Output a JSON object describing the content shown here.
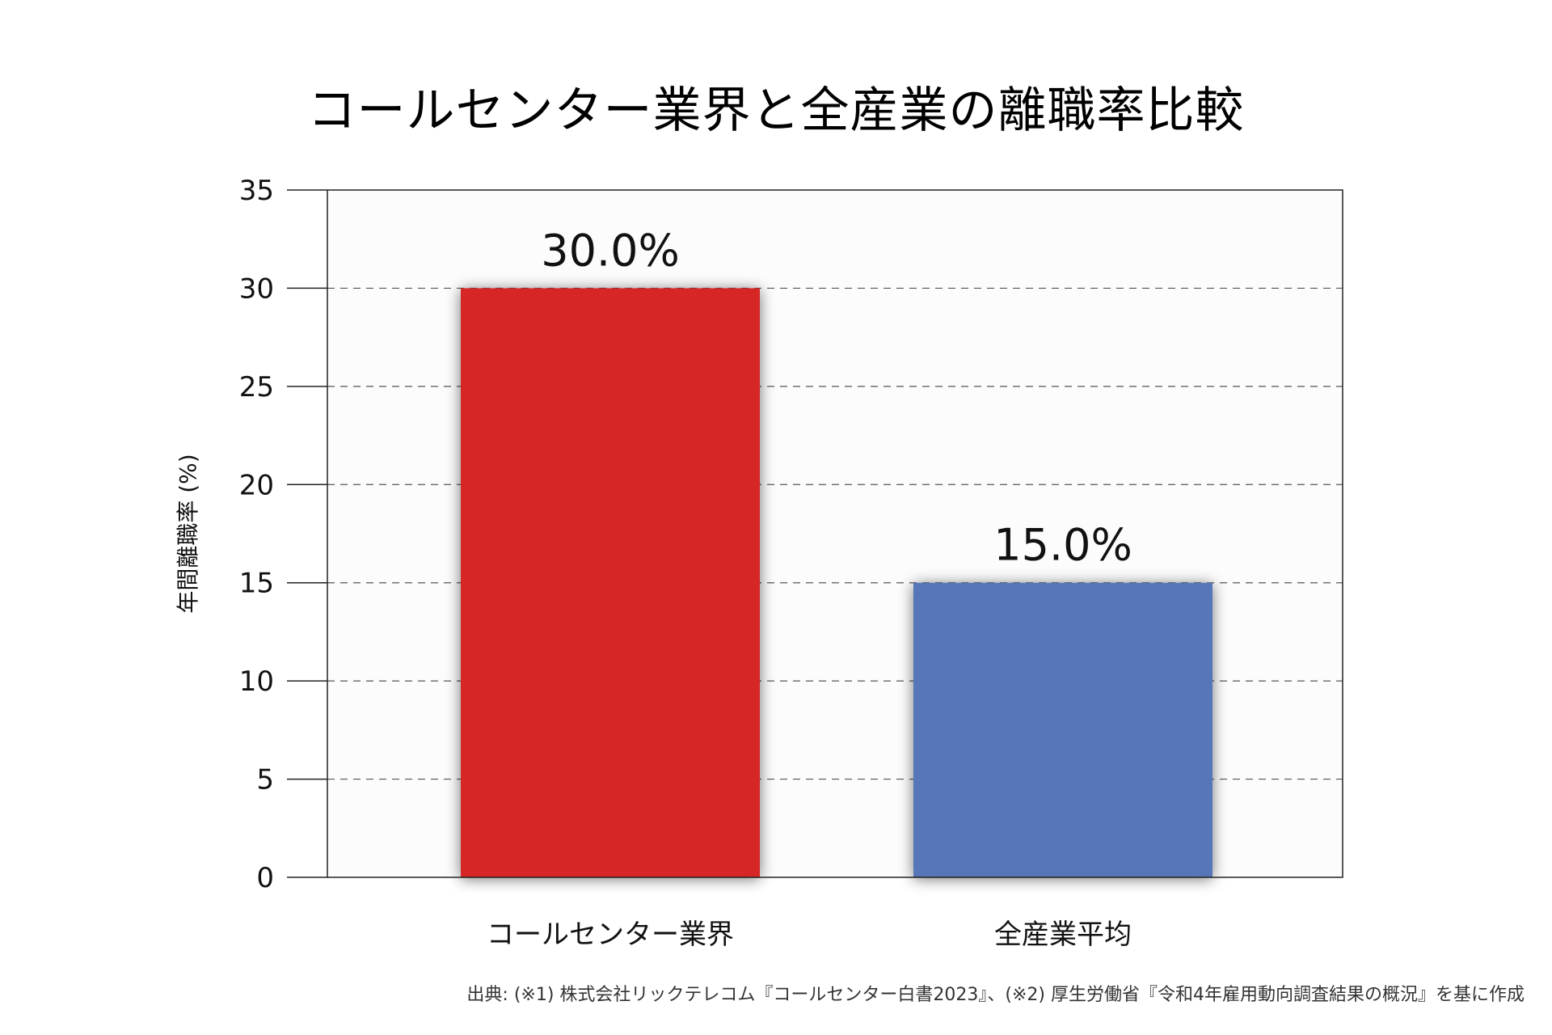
{
  "chart_data": {
    "type": "bar",
    "title": "コールセンター業界と全産業の離職率比較",
    "ylabel": "年間離職率 (%)",
    "xlabel": "",
    "categories": [
      "コールセンター業界",
      "全産業平均"
    ],
    "values": [
      30.0,
      15.0
    ],
    "value_labels": [
      "30.0%",
      "15.0%"
    ],
    "bar_colors": [
      "#d62526",
      "#5676b8"
    ],
    "ylim": [
      0,
      35
    ],
    "yticks": [
      0,
      5,
      10,
      15,
      20,
      25,
      30,
      35
    ],
    "grid": "horizontal-dashed",
    "legend": "none"
  },
  "footnote": "出典: (※1) 株式会社リックテレコム『コールセンター白書2023』、(※2) 厚生労働省『令和4年雇用動向調査結果の概況』を基に作成"
}
